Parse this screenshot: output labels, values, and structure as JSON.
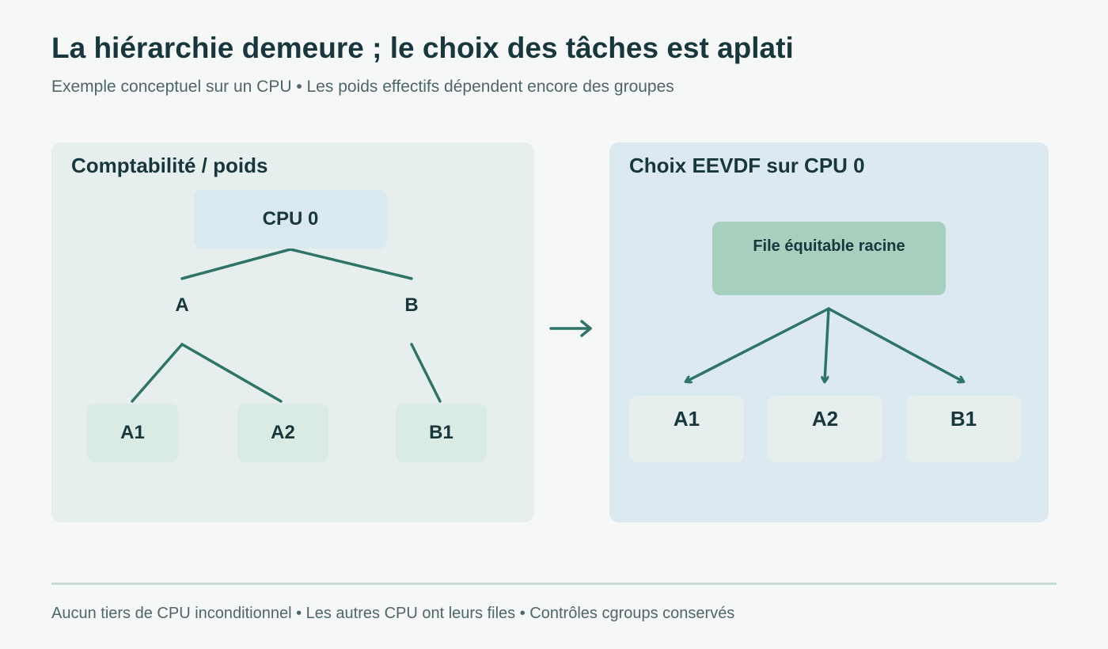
{
  "header": {
    "title": "La hiérarchie demeure ; le choix des tâches est aplati",
    "subtitle": "Exemple conceptuel sur un CPU • Les poids effectifs dépendent encore des groupes"
  },
  "left_panel": {
    "title": "Comptabilité / poids",
    "root": "CPU 0",
    "groups": [
      {
        "label": "A",
        "children": [
          "A1",
          "A2"
        ]
      },
      {
        "label": "B",
        "children": [
          "B1"
        ]
      }
    ]
  },
  "right_panel": {
    "title": "Choix EEVDF sur CPU 0",
    "runqueue": "File équitable racine",
    "tasks": [
      "A1",
      "A2",
      "B1"
    ]
  },
  "footer": {
    "note": "Aucun tiers de CPU inconditionnel • Les autres CPU ont leurs files • Contrôles cgroups conservés"
  },
  "colors": {
    "line": "#2f7468",
    "text": "#17373d",
    "muted_text": "#4d6669",
    "left_panel_bg": "#e6efed",
    "right_panel_bg": "#dce9f1",
    "cpu_box": "#dae8f0",
    "leaf_box": "#d9ebe2",
    "runqueue_box": "#a7cfbe",
    "task_box": "#e6efed"
  },
  "icons": {
    "transition": "right-arrow-icon"
  }
}
